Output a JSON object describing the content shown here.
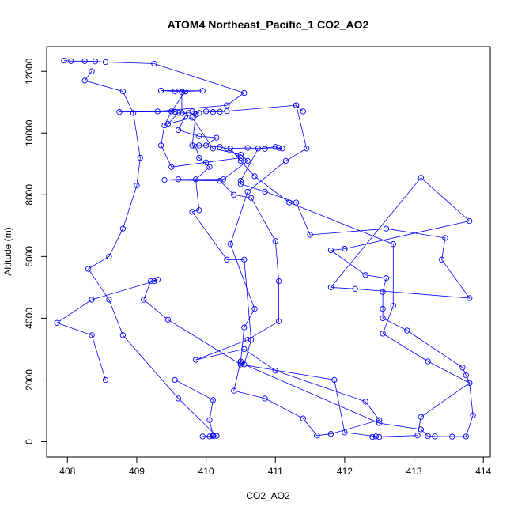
{
  "chart_data": {
    "type": "line",
    "title": "ATOM4 Northeast_Pacific_1 CO2_AO2",
    "xlabel": "CO2_AO2",
    "ylabel": "Altitude (m)",
    "xlim": [
      407.7,
      414.1
    ],
    "ylim": [
      -500,
      12800
    ],
    "x_ticks": [
      408,
      409,
      410,
      411,
      412,
      413,
      414
    ],
    "y_ticks": [
      0,
      2000,
      4000,
      6000,
      8000,
      10000,
      12000
    ],
    "color": "#0000ff",
    "marker": "open-circle",
    "legend": "none",
    "grid": false,
    "series": [
      {
        "points": [
          [
            407.95,
            12350
          ],
          [
            408.05,
            12330
          ],
          [
            408.25,
            12330
          ],
          [
            408.4,
            12320
          ],
          [
            408.55,
            12300
          ],
          [
            409.25,
            12250
          ],
          [
            410.55,
            11300
          ],
          [
            410.3,
            10900
          ],
          [
            409.3,
            10700
          ],
          [
            408.75,
            10680
          ],
          [
            409.55,
            10690
          ],
          [
            409.6,
            10650
          ],
          [
            409.45,
            10300
          ],
          [
            409.8,
            10500
          ],
          [
            410.1,
            9500
          ],
          [
            410.5,
            9300
          ],
          [
            410.6,
            9100
          ],
          [
            410.25,
            8500
          ],
          [
            409.6,
            8500
          ],
          [
            409.4,
            8480
          ],
          [
            410.2,
            8450
          ],
          [
            410.4,
            8000
          ],
          [
            410.65,
            7900
          ],
          [
            411.0,
            6500
          ],
          [
            411.05,
            5200
          ],
          [
            411.05,
            3900
          ],
          [
            410.6,
            3300
          ],
          [
            409.85,
            2650
          ],
          [
            410.55,
            3000
          ],
          [
            411.0,
            2300
          ],
          [
            412.3,
            1300
          ],
          [
            412.5,
            700
          ],
          [
            411.8,
            250
          ],
          [
            411.6,
            200
          ],
          [
            411.4,
            750
          ],
          [
            410.85,
            1400
          ],
          [
            410.4,
            1650
          ],
          [
            410.5,
            2600
          ],
          [
            410.55,
            3700
          ],
          [
            410.7,
            4300
          ],
          [
            410.35,
            6400
          ],
          [
            410.6,
            8100
          ],
          [
            411.15,
            9100
          ],
          [
            411.45,
            9500
          ],
          [
            411.3,
            10900
          ],
          [
            411.4,
            10700
          ]
        ]
      },
      {
        "points": [
          [
            411.3,
            10900
          ],
          [
            410.3,
            10710
          ],
          [
            410.2,
            10690
          ],
          [
            410.1,
            10680
          ],
          [
            410.0,
            10700
          ],
          [
            409.8,
            10700
          ],
          [
            409.9,
            10650
          ],
          [
            409.7,
            10550
          ],
          [
            409.6,
            10100
          ],
          [
            409.9,
            9900
          ],
          [
            410.15,
            9850
          ],
          [
            410.0,
            9600
          ],
          [
            409.9,
            9600
          ],
          [
            410.2,
            9550
          ],
          [
            410.3,
            9500
          ],
          [
            410.5,
            9200
          ],
          [
            410.0,
            9050
          ],
          [
            409.5,
            8900
          ],
          [
            409.35,
            9600
          ],
          [
            409.4,
            10250
          ],
          [
            409.5,
            10700
          ],
          [
            409.7,
            11350
          ],
          [
            409.55,
            11350
          ],
          [
            409.35,
            11380
          ],
          [
            409.95,
            11370
          ],
          [
            409.7,
            11350
          ],
          [
            409.65,
            11330
          ],
          [
            409.65,
            10650
          ],
          [
            409.75,
            10650
          ],
          [
            409.85,
            10600
          ]
        ]
      },
      {
        "points": [
          [
            409.85,
            10600
          ],
          [
            409.8,
            9600
          ],
          [
            409.85,
            9550
          ],
          [
            409.9,
            9200
          ],
          [
            410.05,
            8900
          ],
          [
            409.85,
            8500
          ],
          [
            409.9,
            7500
          ],
          [
            409.8,
            7450
          ],
          [
            410.3,
            5900
          ],
          [
            410.55,
            5900
          ],
          [
            410.65,
            3300
          ],
          [
            410.55,
            2500
          ],
          [
            410.5,
            2550
          ],
          [
            412.5,
            600
          ],
          [
            413.1,
            400
          ],
          [
            413.2,
            180
          ],
          [
            413.3,
            170
          ],
          [
            413.55,
            160
          ],
          [
            413.75,
            170
          ],
          [
            413.85,
            850
          ],
          [
            413.8,
            1900
          ],
          [
            413.75,
            2150
          ],
          [
            413.7,
            2400
          ],
          [
            412.9,
            3600
          ],
          [
            412.55,
            4000
          ],
          [
            412.55,
            4300
          ],
          [
            412.55,
            4850
          ],
          [
            412.6,
            5300
          ],
          [
            412.3,
            5400
          ],
          [
            411.8,
            6200
          ],
          [
            412.0,
            6250
          ]
        ]
      },
      {
        "points": [
          [
            412.0,
            6250
          ],
          [
            413.8,
            7150
          ],
          [
            413.1,
            8550
          ],
          [
            411.8,
            5000
          ],
          [
            412.15,
            4950
          ],
          [
            413.8,
            4650
          ],
          [
            413.4,
            5900
          ],
          [
            413.45,
            6600
          ],
          [
            412.6,
            6900
          ],
          [
            411.5,
            6700
          ],
          [
            411.3,
            7750
          ],
          [
            410.85,
            8100
          ],
          [
            410.5,
            8350
          ],
          [
            410.5,
            8450
          ],
          [
            410.75,
            9500
          ],
          [
            411.0,
            9550
          ],
          [
            411.05,
            9520
          ],
          [
            411.1,
            9500
          ],
          [
            410.85,
            9490
          ],
          [
            410.6,
            9520
          ],
          [
            410.35,
            9500
          ],
          [
            410.5,
            9100
          ],
          [
            410.7,
            8600
          ],
          [
            411.2,
            7750
          ],
          [
            412.7,
            6400
          ],
          [
            412.7,
            4400
          ],
          [
            412.55,
            3500
          ],
          [
            413.2,
            2600
          ],
          [
            413.8,
            1900
          ],
          [
            413.1,
            800
          ],
          [
            413.05,
            200
          ],
          [
            412.4,
            150
          ],
          [
            412.5,
            150
          ],
          [
            412.45,
            170
          ],
          [
            412.0,
            300
          ],
          [
            411.85,
            2000
          ],
          [
            410.5,
            2500
          ],
          [
            409.45,
            3950
          ],
          [
            409.1,
            4600
          ],
          [
            409.2,
            5200
          ],
          [
            409.3,
            5250
          ],
          [
            409.25,
            5200
          ],
          [
            408.35,
            4600
          ],
          [
            407.85,
            3850
          ],
          [
            408.35,
            3450
          ],
          [
            408.55,
            2000
          ],
          [
            409.55,
            2000
          ],
          [
            410.1,
            1350
          ],
          [
            410.05,
            700
          ],
          [
            410.1,
            200
          ],
          [
            410.05,
            170
          ],
          [
            409.95,
            170
          ],
          [
            410.1,
            180
          ],
          [
            410.15,
            190
          ]
        ]
      },
      {
        "points": [
          [
            410.15,
            190
          ],
          [
            409.6,
            1400
          ],
          [
            408.8,
            3450
          ],
          [
            408.6,
            4600
          ],
          [
            408.3,
            5600
          ],
          [
            408.6,
            6000
          ],
          [
            408.8,
            6900
          ],
          [
            409.0,
            8300
          ],
          [
            409.05,
            9200
          ],
          [
            408.95,
            10650
          ],
          [
            408.8,
            11350
          ],
          [
            408.25,
            11700
          ],
          [
            408.35,
            12000
          ]
        ]
      }
    ]
  }
}
